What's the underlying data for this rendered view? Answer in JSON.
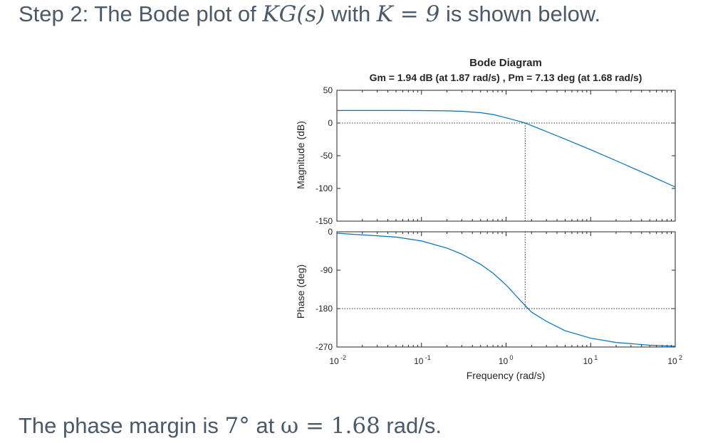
{
  "heading": {
    "prefix": "Step 2: The Bode plot of ",
    "kg": "KG(s)",
    "with": " with ",
    "keq": "K = 9",
    "suffix": " is shown below."
  },
  "footer": {
    "prefix": "The phase margin is ",
    "pm": "7°",
    "at": " at ",
    "omega": "ω = 1.68",
    "suffix": " rad/s."
  },
  "chart_data": {
    "type": "line",
    "title": "Bode Diagram",
    "subtitle": "Gm = 1.94 dB (at 1.87 rad/s) ,  Pm = 7.13 deg (at 1.68 rad/s)",
    "xlabel": "Frequency  (rad/s)",
    "xscale": "log",
    "xlim": [
      0.01,
      100
    ],
    "xticks": [
      {
        "label": "10",
        "exp": "-2"
      },
      {
        "label": "10",
        "exp": "-1"
      },
      {
        "label": "10",
        "exp": "0"
      },
      {
        "label": "10",
        "exp": "1"
      },
      {
        "label": "10",
        "exp": "2"
      }
    ],
    "panels": [
      {
        "ylabel": "Magnitude (dB)",
        "ylim": [
          -150,
          50
        ],
        "yticks": [
          "50",
          "0",
          "-50",
          "-100",
          "-150"
        ],
        "reference_y": 0,
        "marker_x": 1.68,
        "series_x": [
          0.01,
          0.05,
          0.1,
          0.2,
          0.3,
          0.5,
          0.7,
          1,
          1.5,
          1.68,
          2,
          3,
          5,
          10,
          20,
          50,
          100
        ],
        "series_y": [
          19.1,
          19.1,
          19.0,
          18.6,
          17.9,
          15.8,
          13.0,
          8.0,
          1.8,
          0,
          -3.9,
          -13.0,
          -24.7,
          -40.9,
          -57.6,
          -80.2,
          -97.8
        ]
      },
      {
        "ylabel": "Phase (deg)",
        "ylim": [
          -270,
          0
        ],
        "yticks": [
          "0",
          "-90",
          "-180",
          "-270"
        ],
        "reference_y": -180,
        "marker_x": 1.68,
        "series_x": [
          0.01,
          0.05,
          0.1,
          0.2,
          0.3,
          0.5,
          0.7,
          1,
          1.5,
          1.68,
          2,
          3,
          5,
          10,
          20,
          50,
          100
        ],
        "series_y": [
          -3.3,
          -12.3,
          -21.5,
          -38.1,
          -52.3,
          -76.4,
          -96.9,
          -124.5,
          -162.3,
          -172.9,
          -188.2,
          -209.9,
          -232.0,
          -249.4,
          -259.4,
          -265.8,
          -268.0
        ]
      }
    ],
    "line_color": "#0072bd",
    "grid": false
  }
}
